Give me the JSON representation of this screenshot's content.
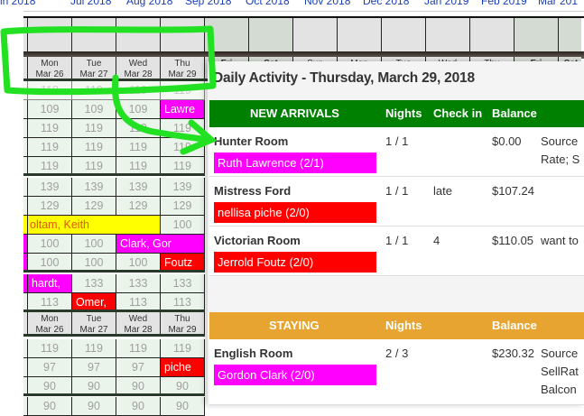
{
  "month_links": [
    "in 2018",
    "Jul 2018",
    "Aug 2018",
    "Sep 2018",
    "Oct 2018",
    "Nov 2018",
    "Dec 2018",
    "Jan 2019",
    "Feb 2019",
    "Mar 201"
  ],
  "date_header": [
    {
      "dow": "Mon",
      "date": "Mar 26"
    },
    {
      "dow": "Tue",
      "date": "Mar 27"
    },
    {
      "dow": "Wed",
      "date": "Mar 28"
    },
    {
      "dow": "Thu",
      "date": "Mar 29"
    },
    {
      "dow": "Fri",
      "date": ""
    },
    {
      "dow": "Sat",
      "date": ""
    },
    {
      "dow": "Sun",
      "date": ""
    },
    {
      "dow": "Mon",
      "date": ""
    },
    {
      "dow": "Tue",
      "date": ""
    },
    {
      "dow": "Wed",
      "date": ""
    },
    {
      "dow": "Thu",
      "date": ""
    },
    {
      "dow": "Fri",
      "date": ""
    },
    {
      "dow": "Sat",
      "date": ""
    }
  ],
  "grid1": [
    [
      "119",
      "119",
      "119",
      "119"
    ],
    [
      "109",
      "109",
      "109",
      "Lawre"
    ],
    [
      "119",
      "119",
      "119",
      "119"
    ],
    [
      "119",
      "119",
      "119",
      "119"
    ],
    [
      "119",
      "119",
      "119",
      "119"
    ],
    [
      "139",
      "139",
      "139",
      "139"
    ],
    [
      "129",
      "129",
      "129",
      "129"
    ],
    [
      "oltam, Keith",
      "100"
    ],
    [
      "100",
      "100",
      "Clark, Gor"
    ],
    [
      "100",
      "100",
      "100",
      "Foutz"
    ],
    [
      "hardt,",
      "133",
      "133",
      "133"
    ],
    [
      "113",
      "Omer,",
      "113",
      "113"
    ]
  ],
  "grid2_header": [
    {
      "dow": "Mon",
      "date": "Mar 26"
    },
    {
      "dow": "Tue",
      "date": "Mar 27"
    },
    {
      "dow": "Wed",
      "date": "Mar 28"
    },
    {
      "dow": "Thu",
      "date": "Mar 29"
    }
  ],
  "grid2": [
    [
      "119",
      "119",
      "119",
      "119"
    ],
    [
      "97",
      "97",
      "97",
      "piche"
    ],
    [
      "90",
      "90",
      "90",
      "90"
    ],
    [
      "90",
      "90",
      "90",
      "90"
    ]
  ],
  "popup": {
    "title": "Daily Activity - Thursday, March 29, 2018",
    "arrivals": {
      "header": "NEW ARRIVALS",
      "nights": "Nights",
      "checkin": "Check in",
      "balance": "Balance",
      "color": "#008000",
      "rows": [
        {
          "room": "Hunter Room",
          "guest": "Ruth Lawrence (2/1)",
          "guest_color": "#ff00ff",
          "nights": "1 / 1",
          "checkin": "",
          "balance": "$0.00",
          "notes": [
            "Source",
            "Rate; S"
          ]
        },
        {
          "room": "Mistress Ford",
          "guest": "nellisa piche (2/0)",
          "guest_color": "#ff0000",
          "nights": "1 / 1",
          "checkin": "late",
          "balance": "$107.24",
          "notes": [
            ""
          ]
        },
        {
          "room": "Victorian Room",
          "guest": "Jerrold Foutz (2/0)",
          "guest_color": "#ff0000",
          "nights": "1 / 1",
          "checkin": "4",
          "balance": "$110.05",
          "notes": [
            "want to"
          ]
        }
      ]
    },
    "staying": {
      "header": "STAYING",
      "nights": "Nights",
      "balance": "Balance",
      "color": "#e8a430",
      "rows": [
        {
          "room": "English Room",
          "guest": "Gordon Clark (2/0)",
          "guest_color": "#ff00ff",
          "nights": "2 / 3",
          "balance": "$230.32",
          "notes": [
            "Source",
            "SellRat",
            "Balcon"
          ]
        }
      ]
    }
  },
  "annotation_color": "#22e022"
}
